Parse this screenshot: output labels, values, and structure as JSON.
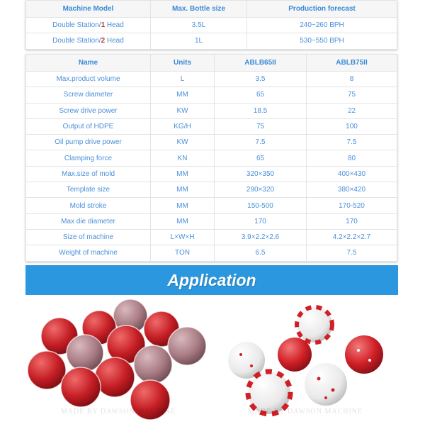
{
  "table1": {
    "headers": [
      "Machine Model",
      "Max. Bottle size",
      "Production forecast"
    ],
    "rows": [
      {
        "model_prefix": "Double Station/",
        "heads": "1",
        "model_suffix": " Head",
        "size": "3.5L",
        "forecast": "240~260 BPH"
      },
      {
        "model_prefix": "Double Station/",
        "heads": "2",
        "model_suffix": " Head",
        "size": "1L",
        "forecast": "530~550 BPH"
      }
    ]
  },
  "table2": {
    "headers": [
      "Name",
      "Units",
      "ABLB65II",
      "ABLB75II"
    ],
    "rows": [
      [
        "Max.product volume",
        "L",
        "3.5",
        "8"
      ],
      [
        "Screw diameter",
        "MM",
        "65",
        "75"
      ],
      [
        "Screw drive power",
        "KW",
        "18.5",
        "22"
      ],
      [
        "Output of HDPE",
        "KG/H",
        "75",
        "100"
      ],
      [
        "Oil pump drive power",
        "KW",
        "7.5",
        "7.5"
      ],
      [
        "Clamping force",
        "KN",
        "65",
        "80"
      ],
      [
        "Max.size of mold",
        "MM",
        "320×350",
        "400×430"
      ],
      [
        "Template size",
        "MM",
        "290×320",
        "380×420"
      ],
      [
        "Mold stroke",
        "MM",
        "150-500",
        "170-520"
      ],
      [
        "Max die diameter",
        "MM",
        "170",
        "170"
      ],
      [
        "Size of machine",
        "L×W×H",
        "3.9×2.2×2.6",
        "4.2×2.2×2.7"
      ],
      [
        "Weight of machine",
        "TON",
        "6.5",
        "7.5"
      ]
    ]
  },
  "banner": {
    "title": "Application",
    "color": "#2b97de"
  },
  "images": [
    {
      "watermark": "MADE BY DAWSON MACHINE"
    },
    {
      "watermark": "MADE BY DAWSON MACHINE"
    }
  ]
}
